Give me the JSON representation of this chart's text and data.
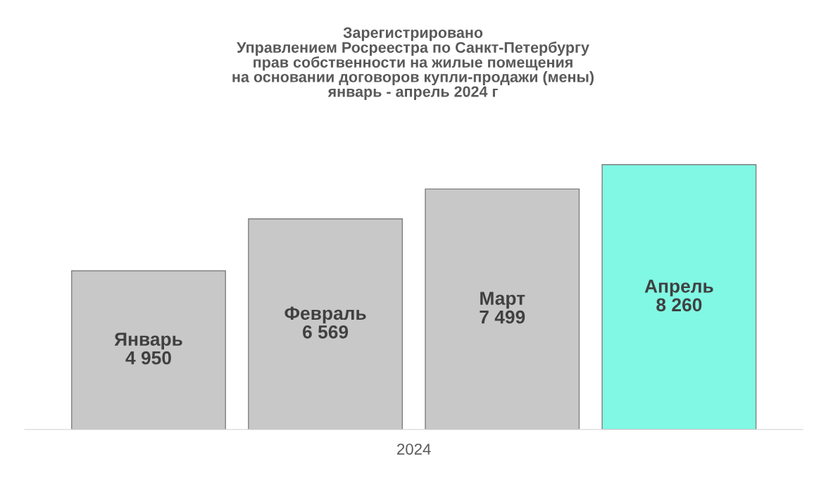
{
  "chart_data": {
    "type": "bar",
    "title": "Зарегистрировано\nУправлением Росреестра по Санкт-Петербургу\nправ собственности на жилые помещения\nна основании договоров купли-продажи (мены)\nянварь - апрель 2024 г",
    "categories": [
      "Январь",
      "Февраль",
      "Март",
      "Апрель"
    ],
    "xlabel": "2024",
    "values": [
      4950,
      6569,
      7499,
      8260
    ],
    "colors": [
      "#c8c8c8",
      "#c8c8c8",
      "#c8c8c8",
      "#80f8e4"
    ],
    "value_labels": [
      "4 950",
      "6 569",
      "7 499",
      "8 260"
    ],
    "legend": false
  }
}
